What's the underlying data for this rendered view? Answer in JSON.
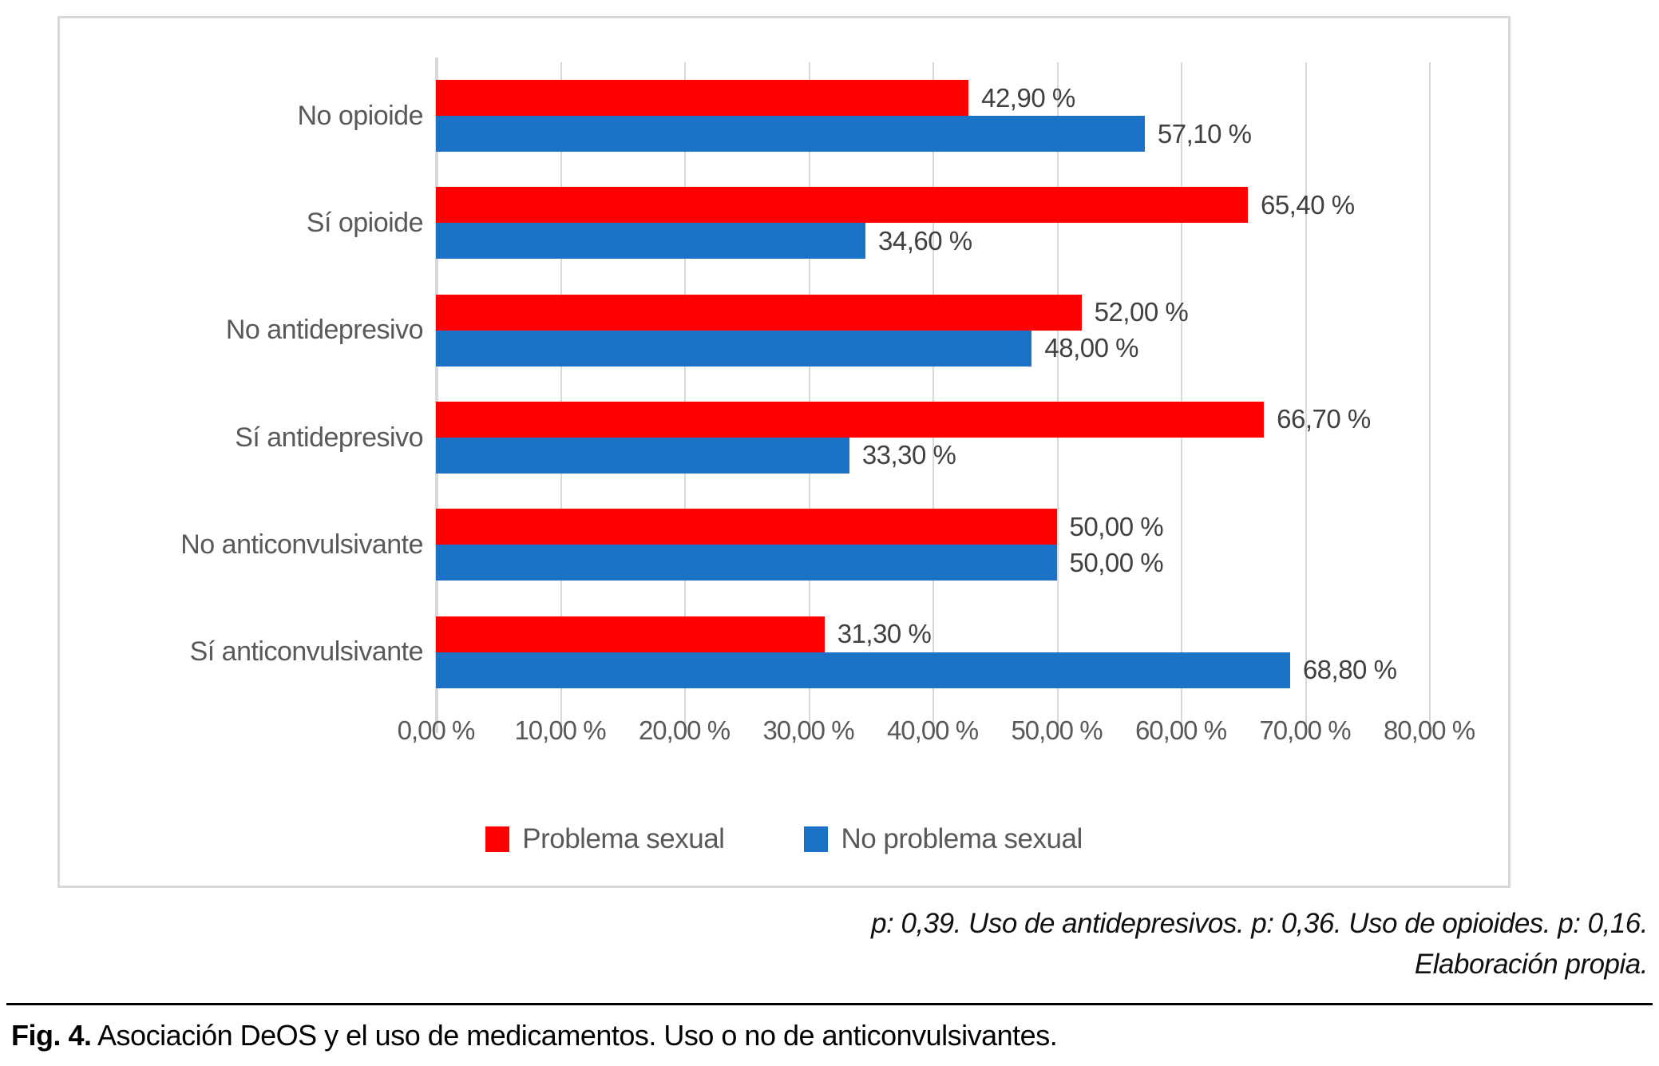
{
  "figure": {
    "caption_label": "Fig. 4.",
    "caption_text": "Asociación DeOS y el uso de medicamentos. Uso o no de anticonvulsivantes.",
    "footnote_line1": "p: 0,39. Uso de antidepresivos. p: 0,36. Uso de opioides. p: 0,16.",
    "footnote_line2": "Elaboración propia."
  },
  "chart_data": {
    "type": "bar",
    "orientation": "horizontal",
    "title": "",
    "categories": [
      "No opioide",
      "Sí opioide",
      "No antidepresivo",
      "Sí antidepresivo",
      "No anticonvulsivante",
      "Sí anticonvulsivante"
    ],
    "series": [
      {
        "name": "Problema sexual",
        "color": "#FF0000",
        "values": [
          42.9,
          65.4,
          52.0,
          66.7,
          50.0,
          31.3
        ],
        "value_labels": [
          "42,90 %",
          "65,40 %",
          "52,00 %",
          "66,70 %",
          "50,00 %",
          "31,30 %"
        ]
      },
      {
        "name": "No problema sexual",
        "color": "#1B72C6",
        "values": [
          57.1,
          34.6,
          48.0,
          33.3,
          50.0,
          68.8
        ],
        "value_labels": [
          "57,10 %",
          "34,60 %",
          "48,00 %",
          "33,30 %",
          "50,00 %",
          "68,80 %"
        ]
      }
    ],
    "xlim": [
      0,
      80
    ],
    "x_tick_step": 10,
    "x_tick_labels": [
      "0,00 %",
      "10,00 %",
      "20,00 %",
      "30,00 %",
      "40,00 %",
      "50,00 %",
      "60,00 %",
      "70,00 %",
      "80,00 %"
    ],
    "grid": true,
    "gridline_color": "#D9D9D9",
    "axis_label_color": "#595959",
    "value_label_color": "#404040",
    "legend_position": "bottom"
  }
}
